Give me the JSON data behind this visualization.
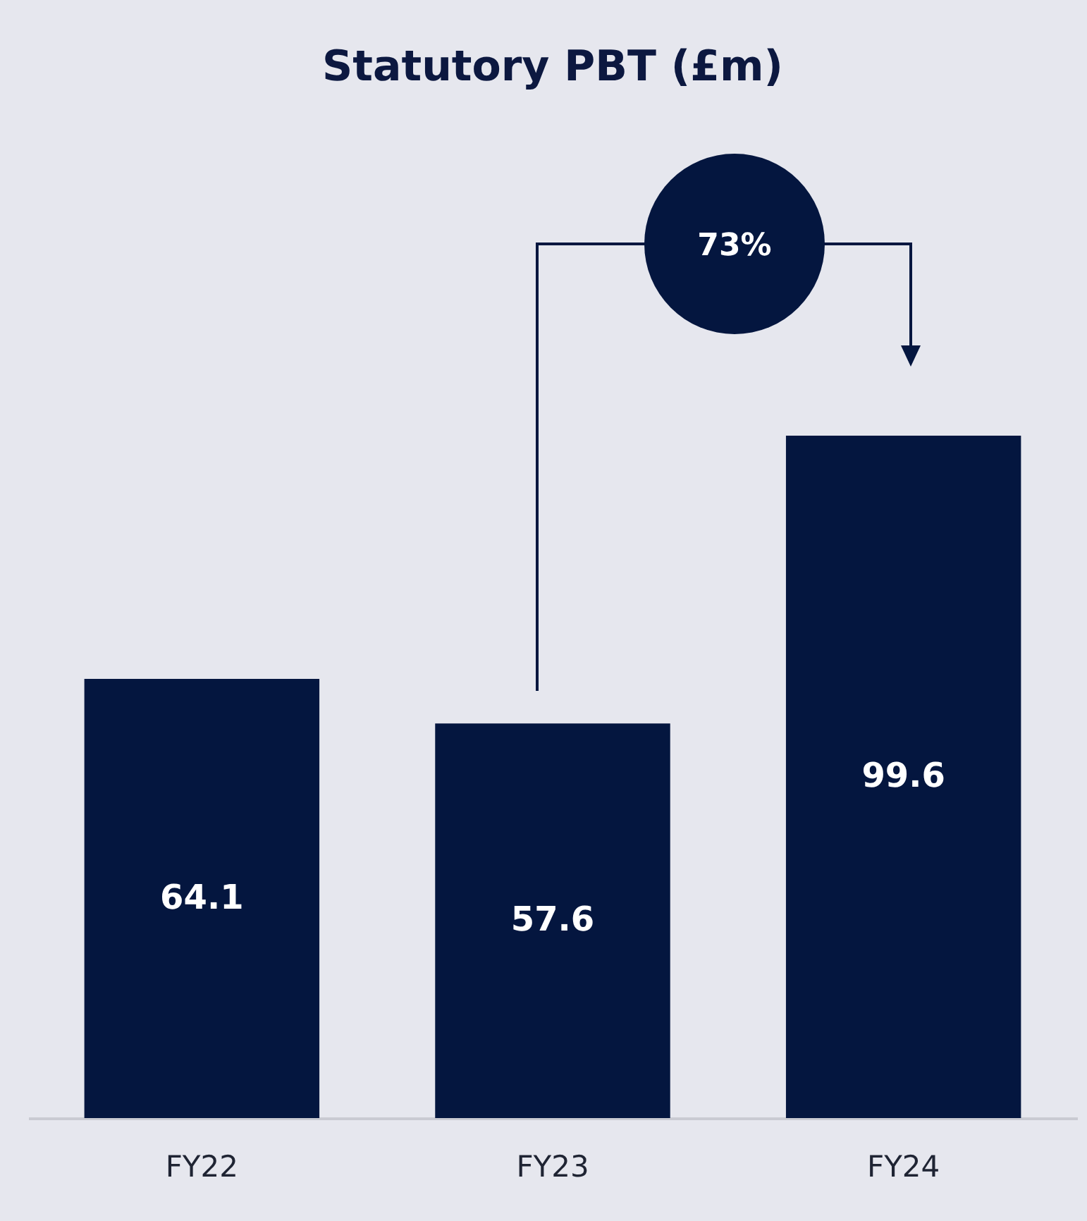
{
  "chart_data": {
    "type": "bar",
    "title": "Statutory PBT (£m)",
    "categories": [
      "FY22",
      "FY23",
      "FY24"
    ],
    "values": [
      64.1,
      57.6,
      99.6
    ],
    "color": "#04163f",
    "data_labels": true,
    "annotations": [
      "73%"
    ]
  }
}
